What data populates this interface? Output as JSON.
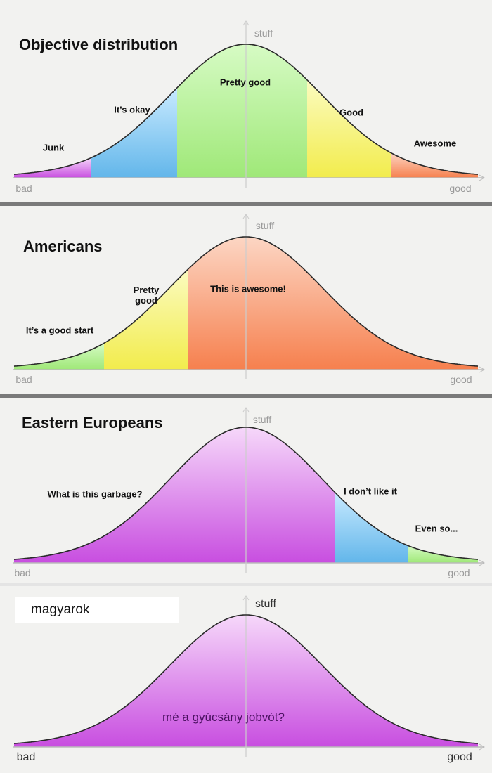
{
  "panels": [
    {
      "title": "Objective distribution",
      "y_axis": "stuff",
      "x_min": "bad",
      "x_max": "good",
      "segments": [
        "Junk",
        "It’s okay",
        "Pretty good",
        "Good",
        "Awesome"
      ]
    },
    {
      "title": "Americans",
      "y_axis": "stuff",
      "x_min": "bad",
      "x_max": "good",
      "segments": [
        "It’s a good start",
        "Pretty good",
        "This is awesome!"
      ]
    },
    {
      "title": "Eastern Europeans",
      "y_axis": "stuff",
      "x_min": "bad",
      "x_max": "good",
      "segments": [
        "What is this garbage?",
        "I don’t like it",
        "Even so..."
      ]
    },
    {
      "title": "magyarok",
      "y_axis": "stuff",
      "x_min": "bad",
      "x_max": "good",
      "segments": [
        "mé a gyúcsány jobvót?"
      ]
    }
  ]
}
